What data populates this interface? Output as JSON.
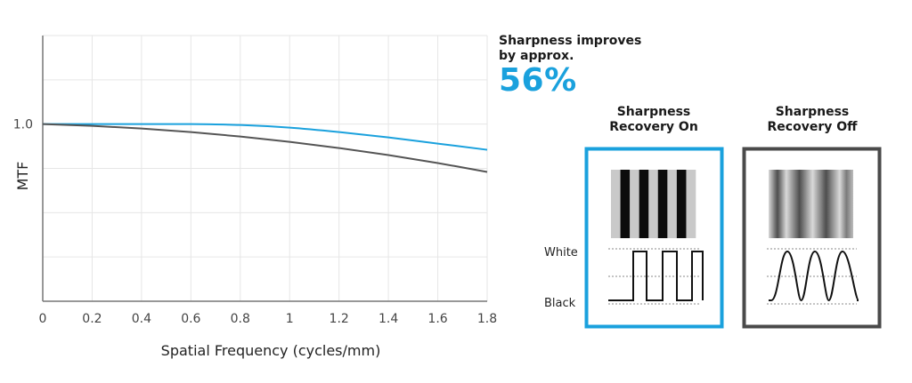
{
  "chart_data": {
    "type": "line",
    "xlabel": "Spatial Frequency (cycles/mm)",
    "ylabel": "MTF",
    "x_ticks": [
      "0",
      "0.2",
      "0.4",
      "0.6",
      "0.8",
      "1",
      "1.2",
      "1.4",
      "1.6",
      "1.8"
    ],
    "y_ticks": [
      "1.0"
    ],
    "xlim": [
      0,
      1.8
    ],
    "ylim": [
      0,
      1.5
    ],
    "grid": true,
    "series": [
      {
        "color": "#1aa1dd",
        "x": [
          0,
          0.2,
          0.4,
          0.6,
          0.8,
          1.0,
          1.2,
          1.4,
          1.6,
          1.8
        ],
        "y": [
          1.0,
          1.0,
          1.0,
          1.0,
          0.995,
          0.98,
          0.955,
          0.925,
          0.89,
          0.855
        ]
      },
      {
        "color": "#555555",
        "x": [
          0,
          0.2,
          0.4,
          0.6,
          0.8,
          1.0,
          1.2,
          1.4,
          1.6,
          1.8
        ],
        "y": [
          1.0,
          0.99,
          0.975,
          0.955,
          0.93,
          0.9,
          0.865,
          0.825,
          0.78,
          0.73
        ]
      }
    ]
  },
  "headline": {
    "line1": "Sharpness improves",
    "line2": "by approx.",
    "percent": "56%"
  },
  "demo": {
    "on": {
      "title_line1": "Sharpness",
      "title_line2": "Recovery On",
      "border_color": "#1aa1dd"
    },
    "off": {
      "title_line1": "Sharpness",
      "title_line2": "Recovery Off",
      "border_color": "#4a4a4a"
    },
    "white_label": "White",
    "black_label": "Black"
  }
}
